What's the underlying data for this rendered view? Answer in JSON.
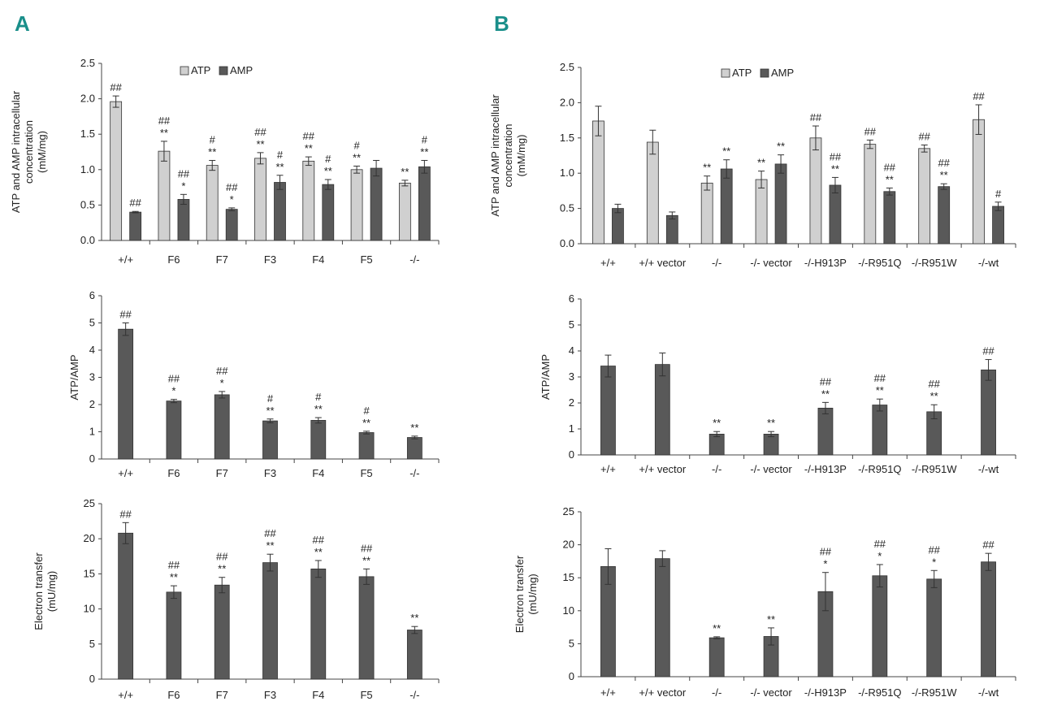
{
  "panels": {
    "A": {
      "letter": "A"
    },
    "B": {
      "letter": "B"
    }
  },
  "colors": {
    "atp": "#d0d0d0",
    "amp": "#595959",
    "letter": "#1a8f8a"
  },
  "chart_data": [
    {
      "id": "A1",
      "panel": "A",
      "type": "bar",
      "ylabel": [
        "ATP and AMP intracellular",
        "concentration",
        "(mM/mg)"
      ],
      "ylim": [
        0,
        2.5
      ],
      "ticks": [
        "0.0",
        "0.5",
        "1.0",
        "1.5",
        "2.0",
        "2.5"
      ],
      "tick_values": [
        0,
        0.5,
        1,
        1.5,
        2,
        2.5
      ],
      "categories": [
        "+/+",
        "F6",
        "F7",
        "F3",
        "F4",
        "F5",
        "-/-"
      ],
      "legend": [
        "ATP",
        "AMP"
      ],
      "series": [
        {
          "name": "ATP",
          "values": [
            1.96,
            1.26,
            1.06,
            1.16,
            1.12,
            1.0,
            0.81
          ],
          "errors": [
            0.08,
            0.14,
            0.07,
            0.08,
            0.06,
            0.05,
            0.04
          ],
          "labels": [
            [
              "##"
            ],
            [
              "##",
              "**"
            ],
            [
              "#",
              "**"
            ],
            [
              "##",
              "**"
            ],
            [
              "##",
              "**"
            ],
            [
              "#",
              "**"
            ],
            [
              "**"
            ]
          ]
        },
        {
          "name": "AMP",
          "values": [
            0.4,
            0.58,
            0.44,
            0.82,
            0.79,
            1.02,
            1.04
          ],
          "errors": [
            0.01,
            0.07,
            0.02,
            0.1,
            0.07,
            0.11,
            0.09
          ],
          "labels": [
            [
              "##"
            ],
            [
              "##",
              "*"
            ],
            [
              "##",
              "*"
            ],
            [
              "#",
              "**"
            ],
            [
              "#",
              "**"
            ],
            [],
            [
              "#",
              "**"
            ]
          ]
        }
      ]
    },
    {
      "id": "A2",
      "panel": "A",
      "type": "bar",
      "ylabel": [
        "ATP/AMP"
      ],
      "ylim": [
        0,
        6
      ],
      "ticks": [
        "0",
        "1",
        "2",
        "3",
        "4",
        "5",
        "6"
      ],
      "tick_values": [
        0,
        1,
        2,
        3,
        4,
        5,
        6
      ],
      "categories": [
        "+/+",
        "F6",
        "F7",
        "F3",
        "F4",
        "F5",
        "-/-"
      ],
      "series": [
        {
          "name": "ATP/AMP",
          "values": [
            4.77,
            2.13,
            2.36,
            1.4,
            1.42,
            0.97,
            0.79
          ],
          "errors": [
            0.23,
            0.06,
            0.12,
            0.07,
            0.1,
            0.05,
            0.05
          ],
          "labels": [
            [
              "##"
            ],
            [
              "##",
              "*"
            ],
            [
              "##",
              "*"
            ],
            [
              "#",
              "**"
            ],
            [
              "#",
              "**"
            ],
            [
              "#",
              "**"
            ],
            [
              "**"
            ]
          ]
        }
      ]
    },
    {
      "id": "A3",
      "panel": "A",
      "type": "bar",
      "ylabel": [
        "Electron transfer",
        "(mU/mg)"
      ],
      "ylim": [
        0,
        25
      ],
      "ticks": [
        "0",
        "5",
        "10",
        "15",
        "20",
        "25"
      ],
      "tick_values": [
        0,
        5,
        10,
        15,
        20,
        25
      ],
      "categories": [
        "+/+",
        "F6",
        "F7",
        "F3",
        "F4",
        "F5",
        "-/-"
      ],
      "series": [
        {
          "name": "Electron transfer",
          "values": [
            20.8,
            12.4,
            13.4,
            16.6,
            15.7,
            14.6,
            7.0
          ],
          "errors": [
            1.5,
            0.9,
            1.1,
            1.2,
            1.2,
            1.1,
            0.5
          ],
          "labels": [
            [
              "##"
            ],
            [
              "##",
              "**"
            ],
            [
              "##",
              "**"
            ],
            [
              "##",
              "**"
            ],
            [
              "##",
              "**"
            ],
            [
              "##",
              "**"
            ],
            [
              "**"
            ]
          ]
        }
      ]
    },
    {
      "id": "B1",
      "panel": "B",
      "type": "bar",
      "ylabel": [
        "ATP and AMP intracellular",
        "concentration",
        "(mM/mg)"
      ],
      "ylim": [
        0,
        2.5
      ],
      "ticks": [
        "0.0",
        "0.5",
        "1.0",
        "1.5",
        "2.0",
        "2.5"
      ],
      "tick_values": [
        0,
        0.5,
        1,
        1.5,
        2,
        2.5
      ],
      "categories": [
        "+/+",
        "+/+ vector",
        "-/-",
        "-/- vector",
        "-/-H913P",
        "-/-R951Q",
        "-/-R951W",
        "-/-wt"
      ],
      "legend": [
        "ATP",
        "AMP"
      ],
      "series": [
        {
          "name": "ATP",
          "values": [
            1.74,
            1.44,
            0.86,
            0.91,
            1.5,
            1.41,
            1.35,
            1.76
          ],
          "errors": [
            0.21,
            0.17,
            0.1,
            0.12,
            0.17,
            0.06,
            0.05,
            0.21
          ],
          "labels": [
            [],
            [],
            [
              "**"
            ],
            [
              "**"
            ],
            [
              "##"
            ],
            [
              "##"
            ],
            [
              "##"
            ],
            [
              "##"
            ]
          ]
        },
        {
          "name": "AMP",
          "values": [
            0.5,
            0.4,
            1.06,
            1.13,
            0.83,
            0.74,
            0.81,
            0.53
          ],
          "errors": [
            0.06,
            0.05,
            0.13,
            0.13,
            0.11,
            0.05,
            0.04,
            0.06
          ],
          "labels": [
            [],
            [],
            [
              "**"
            ],
            [
              "**"
            ],
            [
              "##",
              "**"
            ],
            [
              "##",
              "**"
            ],
            [
              "##",
              "**"
            ],
            [
              "#"
            ]
          ]
        }
      ]
    },
    {
      "id": "B2",
      "panel": "B",
      "type": "bar",
      "ylabel": [
        "ATP/AMP"
      ],
      "ylim": [
        0,
        6
      ],
      "ticks": [
        "0",
        "1",
        "2",
        "3",
        "4",
        "5",
        "6"
      ],
      "tick_values": [
        0,
        1,
        2,
        3,
        4,
        5,
        6
      ],
      "categories": [
        "+/+",
        "+/+ vector",
        "-/-",
        "-/- vector",
        "-/-H913P",
        "-/-R951Q",
        "-/-R951W",
        "-/-wt"
      ],
      "series": [
        {
          "name": "ATP/AMP",
          "values": [
            3.42,
            3.48,
            0.8,
            0.8,
            1.8,
            1.92,
            1.66,
            3.27
          ],
          "errors": [
            0.42,
            0.44,
            0.1,
            0.1,
            0.22,
            0.23,
            0.27,
            0.4
          ],
          "labels": [
            [],
            [],
            [
              "**"
            ],
            [
              "**"
            ],
            [
              "##",
              "**"
            ],
            [
              "##",
              "**"
            ],
            [
              "##",
              "**"
            ],
            [
              "##"
            ]
          ]
        }
      ]
    },
    {
      "id": "B3",
      "panel": "B",
      "type": "bar",
      "ylabel": [
        "Electron transfer",
        "(mU/mg)"
      ],
      "ylim": [
        0,
        25
      ],
      "ticks": [
        "0",
        "5",
        "10",
        "15",
        "20",
        "25"
      ],
      "tick_values": [
        0,
        5,
        10,
        15,
        20,
        25
      ],
      "categories": [
        "+/+",
        "+/+ vector",
        "-/-",
        "-/- vector",
        "-/-H913P",
        "-/-R951Q",
        "-/-R951W",
        "-/-wt"
      ],
      "series": [
        {
          "name": "Electron transfer",
          "values": [
            16.7,
            17.9,
            5.9,
            6.1,
            12.9,
            15.3,
            14.8,
            17.4
          ],
          "errors": [
            2.7,
            1.2,
            0.15,
            1.3,
            2.9,
            1.7,
            1.3,
            1.3
          ],
          "labels": [
            [],
            [],
            [
              "**"
            ],
            [
              "**"
            ],
            [
              "##",
              "*"
            ],
            [
              "##",
              "*"
            ],
            [
              "##",
              "*"
            ],
            [
              "##"
            ]
          ]
        }
      ]
    }
  ]
}
